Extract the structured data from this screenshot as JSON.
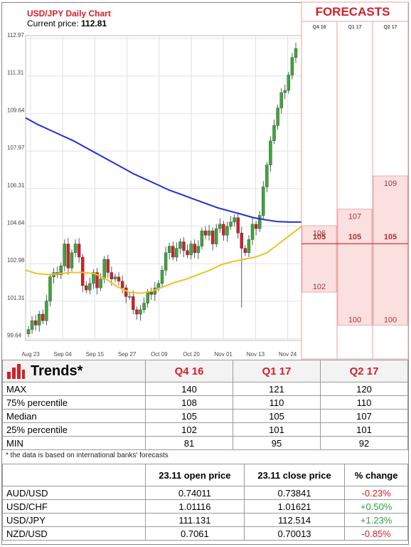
{
  "header": {
    "title": "USD/JPY Daily Chart",
    "price_label": "Current price: ",
    "price_value": "112.81"
  },
  "colors": {
    "candle_up": "#3aa83a",
    "candle_down": "#d32027",
    "ma_long": "#1f2fd6",
    "ma_short": "#f0c020",
    "forecast_title": "#d32027",
    "forecast_fill": "#fbe0e0"
  },
  "chart_data": [
    {
      "type": "line",
      "title": "USD/JPY Daily Chart",
      "y_ticks": [
        "112.97",
        "111.31",
        "109.64",
        "107.97",
        "106.31",
        "104.64",
        "102.98",
        "101.31",
        "99.64"
      ],
      "x_ticks": [
        "Aug 23",
        "Sep 04",
        "Sep 15",
        "Sep 27",
        "Oct 09",
        "Oct 20",
        "Nov 01",
        "Nov 13",
        "Nov 24"
      ],
      "ylim": [
        99.5,
        113.4
      ],
      "current_price": 112.81,
      "series": [
        {
          "kind": "candlestick",
          "closes": [
            100.0,
            100.4,
            100.2,
            100.7,
            100.4,
            101.3,
            102.4,
            102.6,
            102.5,
            102.9,
            103.9,
            102.8,
            103.5,
            103.9,
            103.3,
            102.0,
            101.8,
            102.1,
            102.6,
            101.9,
            102.3,
            103.2,
            102.6,
            102.3,
            102.4,
            102.2,
            101.9,
            101.5,
            101.5,
            100.9,
            100.7,
            100.9,
            101.2,
            101.7,
            101.6,
            101.9,
            102.1,
            102.7,
            103.5,
            103.8,
            103.3,
            103.7,
            104.0,
            103.6,
            103.4,
            103.9,
            103.5,
            103.8,
            104.5,
            104.3,
            104.5,
            103.9,
            104.6,
            104.8,
            104.3,
            104.7,
            104.9,
            105.1,
            104.4,
            103.7,
            103.5,
            104.1,
            104.8,
            104.6,
            105.2,
            106.5,
            107.5,
            108.6,
            109.3,
            110.1,
            110.8,
            110.9,
            111.6,
            112.4,
            112.81
          ]
        },
        {
          "kind": "moving-average",
          "values": [
            109.65,
            109.35,
            109.1,
            108.85,
            108.6,
            108.3,
            108.0,
            107.7,
            107.4,
            107.1,
            106.85,
            106.6,
            106.35,
            106.15,
            105.95,
            105.75,
            105.55,
            105.4,
            105.25,
            105.1,
            105.0,
            104.92,
            104.9,
            104.9
          ]
        },
        {
          "kind": "moving-average",
          "values": [
            102.7,
            102.55,
            102.5,
            102.55,
            102.6,
            102.6,
            102.55,
            102.3,
            101.95,
            101.7,
            101.65,
            101.75,
            101.95,
            102.15,
            102.3,
            102.5,
            102.7,
            102.95,
            103.1,
            103.2,
            103.3,
            103.5,
            103.9,
            104.3,
            104.7
          ]
        }
      ]
    },
    {
      "type": "bar",
      "title": "FORECASTS",
      "categories": [
        "Q4 16",
        "Q1 17",
        "Q2 17"
      ],
      "series": [
        {
          "name": "MIN",
          "values": [
            81,
            95,
            92
          ]
        },
        {
          "name": "25% percentile",
          "values": [
            102,
            101,
            101
          ]
        },
        {
          "name": "Median",
          "values": [
            105,
            105,
            107
          ]
        },
        {
          "name": "75% percentile",
          "values": [
            108,
            110,
            110
          ]
        },
        {
          "name": "MAX",
          "values": [
            140,
            121,
            120
          ]
        }
      ],
      "displayed_labels": {
        "Q4 16": [
          "106",
          "105",
          "102"
        ],
        "Q1 17": [
          "107",
          "105",
          "100"
        ],
        "Q2 17": [
          "109",
          "105",
          "100"
        ]
      },
      "visible_ranges": [
        [
          102,
          106
        ],
        [
          100,
          107
        ],
        [
          100,
          109
        ]
      ],
      "median_line": 105
    }
  ],
  "trends": {
    "title": "Trends*",
    "columns": [
      "Q4 16",
      "Q1 17",
      "Q2 17"
    ],
    "rows": [
      {
        "label": "MAX",
        "values": [
          "140",
          "121",
          "120"
        ]
      },
      {
        "label": "75% percentile",
        "values": [
          "108",
          "110",
          "110"
        ]
      },
      {
        "label": "Median",
        "values": [
          "105",
          "105",
          "107"
        ]
      },
      {
        "label": "25% percentile",
        "values": [
          "102",
          "101",
          "101"
        ]
      },
      {
        "label": "MIN",
        "values": [
          "81",
          "95",
          "92"
        ]
      }
    ],
    "footnote": "* the data is based on international banks' forecasts"
  },
  "fx": {
    "columns": [
      "23.11 open price",
      "23.11 close price",
      "% change"
    ],
    "rows": [
      {
        "pair": "AUD/USD",
        "open": "0.74011",
        "close": "0.73841",
        "change": "-0.23%",
        "dir": "neg"
      },
      {
        "pair": "USD/CHF",
        "open": "1.01116",
        "close": "1.01621",
        "change": "+0.50%",
        "dir": "pos"
      },
      {
        "pair": "USD/JPY",
        "open": "111.131",
        "close": "112.514",
        "change": "+1.23%",
        "dir": "pos"
      },
      {
        "pair": "NZD/USD",
        "open": "0.7061",
        "close": "0.70013",
        "change": "-0.85%",
        "dir": "neg"
      }
    ]
  }
}
